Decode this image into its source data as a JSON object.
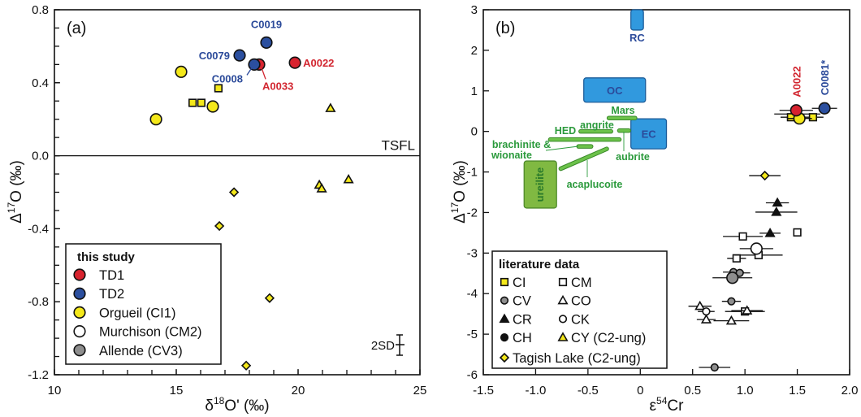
{
  "colors": {
    "red": "#d8232f",
    "blue": "#2b4f9f",
    "yellow": "#f4e81a",
    "gray": "#8e8e8e",
    "white": "#ffffff",
    "black": "#111111",
    "label_blue": "#2b4a9a",
    "label_red": "#d22630",
    "region_blue": "#3199de",
    "region_stroke": "#1d5d9a",
    "ureilite": "#80b942",
    "ureilite_stroke": "#4f8a2b",
    "bar_green": "#6cc24a",
    "bar_stroke": "#3a8a2a",
    "text_green": "#2b9a3c"
  },
  "chart_data": [
    {
      "type": "scatter",
      "panel_label": "(a)",
      "xlabel": {
        "pre": "δ",
        "sup": "18",
        "post": "O' (‰)"
      },
      "ylabel": {
        "pre": "Δ",
        "sup": "17",
        "post": "O (‰)"
      },
      "xlim": [
        10,
        25
      ],
      "ylim": [
        -1.2,
        0.8
      ],
      "xticks": [
        {
          "v": 10,
          "t": "10"
        },
        {
          "v": 15,
          "t": "15"
        },
        {
          "v": 20,
          "t": "20"
        },
        {
          "v": 25,
          "t": "25"
        }
      ],
      "yticks": [
        {
          "v": 0.8,
          "t": "0.8"
        },
        {
          "v": 0.4,
          "t": "0.4"
        },
        {
          "v": 0.0,
          "t": "0.0"
        },
        {
          "v": -0.4,
          "t": "-0.4"
        },
        {
          "v": -0.8,
          "t": "-0.8"
        },
        {
          "v": -1.2,
          "t": "-1.2"
        }
      ],
      "x_minor_step": 1,
      "y_minor_step": 0.1,
      "reference_line": {
        "y": 0,
        "label": "TSFL"
      },
      "error_bar_label": "2SD",
      "legend": {
        "title": "this study",
        "placement": "bottom-left",
        "entries": [
          {
            "label": "TD1",
            "series": "TD1"
          },
          {
            "label": "TD2",
            "series": "TD2"
          },
          {
            "label": "Orgueil (CI1)",
            "series": "Orgueil"
          },
          {
            "label": "Murchison (CM2)",
            "series": "Murchison"
          },
          {
            "label": "Allende (CV3)",
            "series": "Allende"
          }
        ]
      },
      "series": [
        {
          "name": "TD1",
          "marker": "circle",
          "color": "red",
          "size": "large",
          "points": [
            [
              18.4,
              0.5,
              "A0033"
            ],
            [
              19.87,
              0.51,
              "A0022"
            ]
          ]
        },
        {
          "name": "TD2",
          "marker": "circle",
          "color": "blue",
          "size": "large",
          "points": [
            [
              17.6,
              0.55,
              "C0079"
            ],
            [
              18.7,
              0.62,
              "C0019"
            ],
            [
              18.2,
              0.5,
              "C0008"
            ]
          ]
        },
        {
          "name": "Orgueil",
          "marker": "circle",
          "color": "yellow",
          "size": "large",
          "points": [
            [
              14.17,
              0.2
            ],
            [
              15.2,
              0.46
            ],
            [
              16.5,
              0.27
            ]
          ]
        },
        {
          "name": "Murchison",
          "marker": "circle",
          "color": "white",
          "size": "large",
          "points": []
        },
        {
          "name": "Allende",
          "marker": "circle",
          "color": "gray",
          "size": "large",
          "points": []
        },
        {
          "name": "CI",
          "marker": "square",
          "color": "yellow",
          "size": "small",
          "points": [
            [
              15.67,
              0.29
            ],
            [
              16.03,
              0.29
            ],
            [
              16.73,
              0.37
            ]
          ]
        },
        {
          "name": "CY",
          "marker": "triangle",
          "color": "yellow",
          "size": "small",
          "points": [
            [
              21.33,
              0.26
            ],
            [
              20.87,
              -0.16
            ],
            [
              20.97,
              -0.18
            ],
            [
              22.07,
              -0.13
            ]
          ]
        },
        {
          "name": "Tagish Lake",
          "marker": "diamond",
          "color": "yellow",
          "size": "small",
          "points": [
            [
              17.37,
              -0.2
            ],
            [
              16.77,
              -0.385
            ],
            [
              18.83,
              -0.78
            ],
            [
              17.87,
              -1.15
            ]
          ]
        }
      ]
    },
    {
      "type": "scatter",
      "panel_label": "(b)",
      "xlabel": {
        "pre": "ε",
        "sup": "54",
        "post": "Cr"
      },
      "ylabel": {
        "pre": "Δ",
        "sup": "17",
        "post": "O (‰)"
      },
      "xlim": [
        -1.5,
        2.0
      ],
      "ylim": [
        -6,
        3
      ],
      "xticks": [
        {
          "v": -1.5,
          "t": "-1.5"
        },
        {
          "v": -1.0,
          "t": "-1.0"
        },
        {
          "v": -0.5,
          "t": "-0.5"
        },
        {
          "v": 0,
          "t": "0"
        },
        {
          "v": 0.5,
          "t": "0.5"
        },
        {
          "v": 1.0,
          "t": "1.0"
        },
        {
          "v": 1.5,
          "t": "1.5"
        },
        {
          "v": 2.0,
          "t": "2.0"
        }
      ],
      "yticks": [
        {
          "v": 3,
          "t": "3"
        },
        {
          "v": 2,
          "t": "2"
        },
        {
          "v": 1,
          "t": "1"
        },
        {
          "v": 0,
          "t": "0"
        },
        {
          "v": -1,
          "t": "-1"
        },
        {
          "v": -2,
          "t": "-2"
        },
        {
          "v": -3,
          "t": "-3"
        },
        {
          "v": -4,
          "t": "-4"
        },
        {
          "v": -5,
          "t": "-5"
        },
        {
          "v": -6,
          "t": "-6"
        }
      ],
      "regions": [
        {
          "label": "RC",
          "kind": "blue",
          "range": [
            -0.09,
            0.03,
            2.5,
            3.0
          ],
          "label_below": true
        },
        {
          "label": "OC",
          "kind": "blue",
          "range": [
            -0.54,
            0.05,
            0.72,
            1.32
          ]
        },
        {
          "label": "EC",
          "kind": "blue",
          "range": [
            -0.09,
            0.25,
            -0.43,
            0.31
          ]
        },
        {
          "label": "ureilite",
          "kind": "green",
          "range": [
            -1.11,
            -0.8,
            -1.89,
            -0.73
          ]
        }
      ],
      "bars": [
        {
          "label": "Mars",
          "seg": [
            -0.3,
            0.33,
            -0.05,
            0.33
          ]
        },
        {
          "label": "angrite",
          "seg": [
            -0.57,
            0.0,
            -0.28,
            0.0
          ]
        },
        {
          "label": "HED",
          "seg": [
            -0.86,
            -0.2,
            -0.2,
            -0.2
          ]
        },
        {
          "label": "aubrite",
          "seg": [
            -0.2,
            0.02,
            -0.11,
            0.02
          ]
        },
        {
          "label": "brachinite & wionaite",
          "seg": [
            -0.59,
            -0.37,
            -0.47,
            -0.37
          ]
        },
        {
          "label": "acaplucoite",
          "seg": [
            -0.76,
            -0.92,
            -0.32,
            -0.43
          ]
        }
      ],
      "legend": {
        "title": "literature data",
        "placement": "bottom-left",
        "entries": [
          {
            "label": "CI",
            "series": "CI"
          },
          {
            "label": "CM",
            "series": "CM"
          },
          {
            "label": "CV",
            "series": "CV"
          },
          {
            "label": "CO",
            "series": "CO"
          },
          {
            "label": "CR",
            "series": "CR"
          },
          {
            "label": "CK",
            "series": "CK"
          },
          {
            "label": "CH",
            "series": "CH"
          },
          {
            "label": "CY (C2-ung)",
            "series": "CY"
          },
          {
            "label": "Tagish Lake (C2-ung)",
            "series": "Tagish Lake"
          }
        ]
      },
      "series": [
        {
          "name": "CI",
          "marker": "square",
          "color": "yellow",
          "size": "small",
          "points": [
            [
              1.5,
              0.43,
              0.22
            ],
            [
              1.44,
              0.35,
              0.1
            ],
            [
              1.65,
              0.35,
              0.1
            ]
          ]
        },
        {
          "name": "CM",
          "marker": "square",
          "color": "white",
          "size": "small",
          "points": [
            [
              1.5,
              -2.49,
              0
            ],
            [
              0.98,
              -2.59,
              0.19
            ],
            [
              0.92,
              -3.13,
              0.09
            ],
            [
              1.13,
              -3.05,
              0.23
            ],
            [
              1.0,
              -4.44,
              0.19
            ]
          ]
        },
        {
          "name": "CV",
          "marker": "circle",
          "color": "gray",
          "size": "small",
          "points": [
            [
              0.89,
              -3.47,
              0.1
            ],
            [
              0.95,
              -3.49,
              0.1
            ],
            [
              0.87,
              -4.19,
              0.09
            ],
            [
              0.71,
              -5.82,
              0.15
            ]
          ]
        },
        {
          "name": "CO",
          "marker": "triangle",
          "color": "white",
          "size": "small",
          "points": [
            [
              0.57,
              -4.31,
              0.11
            ],
            [
              0.63,
              -4.64,
              0.09
            ],
            [
              0.87,
              -4.67,
              0.17
            ],
            [
              1.02,
              -4.42,
              0.15
            ]
          ]
        },
        {
          "name": "CR",
          "marker": "triangle",
          "color": "black",
          "size": "small",
          "points": [
            [
              1.31,
              -1.76,
              0.11
            ],
            [
              1.3,
              -1.99,
              0.2
            ],
            [
              1.24,
              -2.51,
              0.1
            ]
          ]
        },
        {
          "name": "CK",
          "marker": "circle",
          "color": "white",
          "size": "small",
          "points": [
            [
              0.63,
              -4.44,
              0.08
            ]
          ]
        },
        {
          "name": "CH",
          "marker": "circle",
          "color": "black",
          "size": "small",
          "points": []
        },
        {
          "name": "CY",
          "marker": "triangle",
          "color": "yellow",
          "size": "small",
          "points": []
        },
        {
          "name": "Tagish Lake",
          "marker": "diamond",
          "color": "yellow",
          "size": "small",
          "points": [
            [
              1.19,
              -1.09,
              0.15
            ]
          ]
        },
        {
          "name": "Murchison",
          "marker": "circle",
          "color": "white",
          "size": "large",
          "points": [
            [
              1.11,
              -2.89,
              0.16
            ]
          ]
        },
        {
          "name": "Allende",
          "marker": "circle",
          "color": "gray",
          "size": "large",
          "points": [
            [
              0.88,
              -3.61,
              0.19
            ]
          ]
        },
        {
          "name": "Orgueil",
          "marker": "circle",
          "color": "yellow",
          "size": "large",
          "points": [
            [
              1.52,
              0.32,
              0.12
            ]
          ]
        },
        {
          "name": "TD1",
          "marker": "circle",
          "color": "red",
          "size": "large",
          "points": [
            [
              1.49,
              0.52,
              0.16,
              "A0022"
            ]
          ]
        },
        {
          "name": "TD2",
          "marker": "circle",
          "color": "blue",
          "size": "large",
          "points": [
            [
              1.76,
              0.57,
              0.12,
              "C0081*"
            ]
          ]
        }
      ]
    }
  ]
}
